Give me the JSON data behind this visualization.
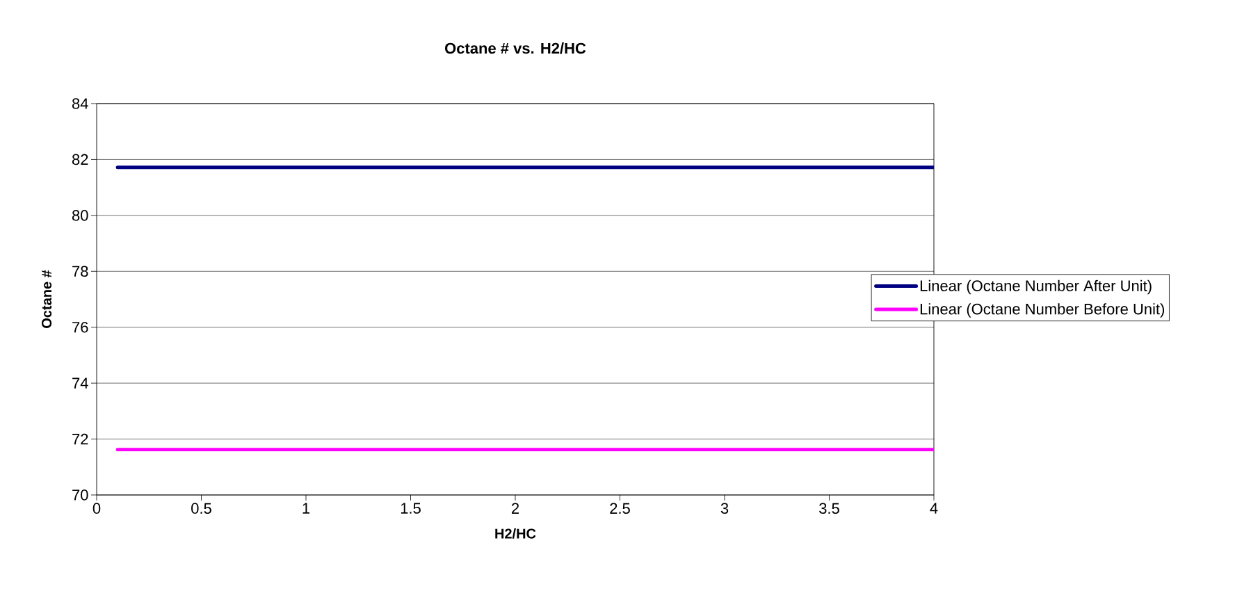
{
  "chart_data": {
    "type": "line",
    "title": "Octane # vs. H2/HC",
    "xlabel": "H2/HC",
    "ylabel": "Octane #",
    "xlim": [
      0,
      4
    ],
    "xticks": [
      0,
      0.5,
      1,
      1.5,
      2,
      2.5,
      3,
      3.5,
      4
    ],
    "ylim": [
      70,
      84
    ],
    "yticks": [
      70,
      72,
      74,
      76,
      78,
      80,
      82,
      84
    ],
    "x": [
      0.1,
      4
    ],
    "grid": "y",
    "legend": "right",
    "marker": "none",
    "line_style": "solid",
    "series": [
      {
        "name": "Linear (Octane Number After Unit)",
        "color": "#000080",
        "values": [
          81.72,
          81.72
        ]
      },
      {
        "name": "Linear (Octane Number Before Unit)",
        "color": "#ff00ff",
        "values": [
          71.62,
          71.62
        ]
      }
    ]
  }
}
